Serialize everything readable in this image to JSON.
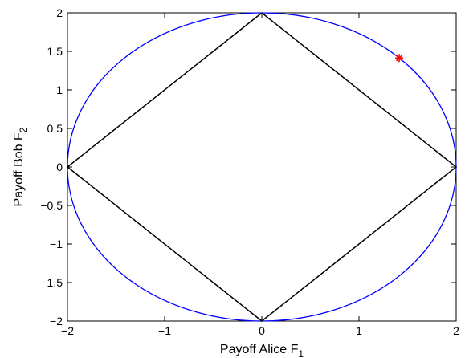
{
  "chart_data": {
    "type": "line",
    "title": "",
    "xlabel": "Payoff Alice F",
    "xlabel_sub": "1",
    "ylabel": "Payoff Bob F",
    "ylabel_sub": "2",
    "xlim": [
      -2,
      2
    ],
    "ylim": [
      -2,
      2
    ],
    "xticks": [
      -2,
      -1,
      0,
      1,
      2
    ],
    "xtick_labels": [
      "−2",
      "−1",
      "0",
      "1",
      "2"
    ],
    "yticks": [
      -2,
      -1.5,
      -1,
      -0.5,
      0,
      0.5,
      1,
      1.5,
      2
    ],
    "ytick_labels": [
      "−2",
      "−1.5",
      "−1",
      "−0.5",
      "0",
      "0.5",
      "1",
      "1.5",
      "2"
    ],
    "grid": false,
    "legend": "none",
    "series": [
      {
        "kind": "circle",
        "color": "#0000ff",
        "center": [
          0,
          0
        ],
        "radius": 2
      },
      {
        "kind": "polygon",
        "color": "#000000",
        "x": [
          0,
          2,
          0,
          -2,
          0
        ],
        "y": [
          2,
          0,
          -2,
          0,
          2
        ]
      },
      {
        "kind": "marker",
        "color": "#ff0000",
        "marker": "asterisk",
        "x": [
          1.414
        ],
        "y": [
          1.414
        ]
      }
    ]
  }
}
